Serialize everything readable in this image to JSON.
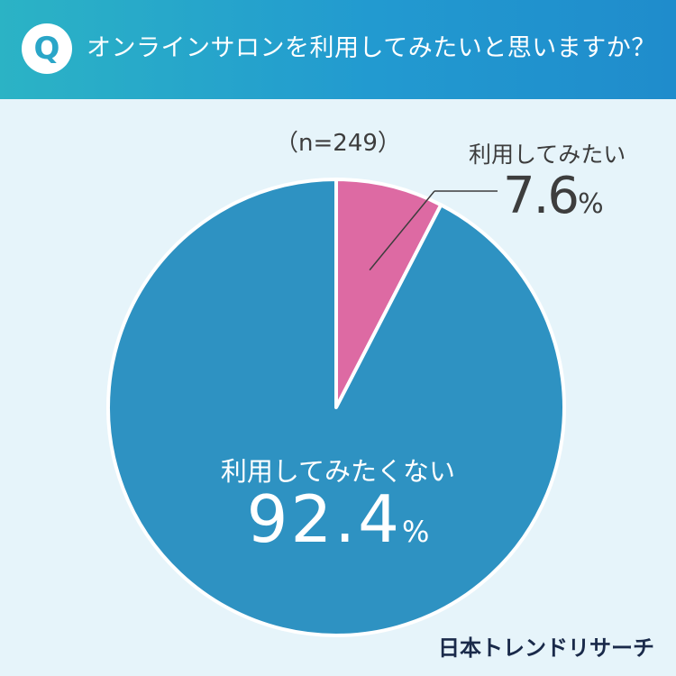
{
  "header": {
    "badge": "Q",
    "question": "オンラインサロンを利用してみたいと思いますか？"
  },
  "sample_size": "（n=249）",
  "brand": "日本トレンドリサーチ",
  "colors": {
    "header_start": "#2bb3c5",
    "header_end": "#1f8ccc",
    "background": "#e6f4fa",
    "slice_yes": "#dd6aa3",
    "slice_no": "#2e92c2"
  },
  "chart_data": {
    "type": "pie",
    "title": "オンラインサロンを利用してみたいと思いますか？",
    "categories": [
      "利用してみたい",
      "利用してみたくない"
    ],
    "values": [
      7.6,
      92.4
    ],
    "value_labels": [
      {
        "number": "7.6",
        "unit": "%"
      },
      {
        "number": "92.4",
        "unit": "%"
      }
    ],
    "colors": [
      "#dd6aa3",
      "#2e92c2"
    ],
    "legend": "none"
  }
}
